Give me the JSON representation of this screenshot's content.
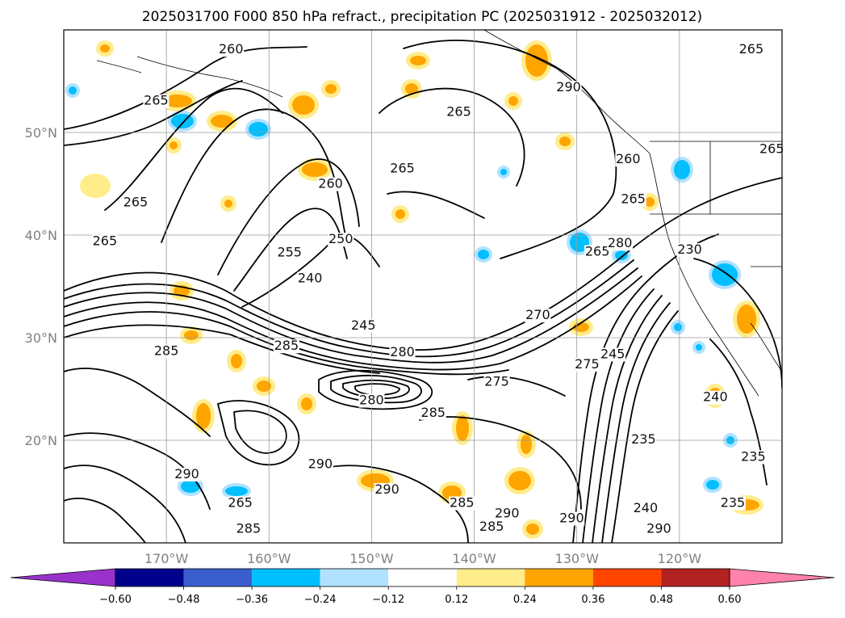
{
  "title": "2025031700 F000 850 hPa refract., precipitation PC (2025031912 - 2025032012)",
  "map": {
    "lat_labels": [
      "20°N",
      "30°N",
      "40°N",
      "50°N"
    ],
    "lon_labels": [
      "170°W",
      "160°W",
      "150°W",
      "140°W",
      "130°W",
      "120°W"
    ],
    "lat_values": [
      20,
      30,
      40,
      50
    ],
    "lon_values": [
      -170,
      -160,
      -150,
      -140,
      -130,
      -120
    ],
    "extent": {
      "lon_min": -180,
      "lon_max": -110,
      "lat_min": 10,
      "lat_max": 60
    }
  },
  "contours": {
    "color": "#000000",
    "labels": [
      {
        "text": "260",
        "lon": -163.7,
        "lat": 57.7
      },
      {
        "text": "265",
        "lon": -171.0,
        "lat": 52.7
      },
      {
        "text": "265",
        "lon": -173.0,
        "lat": 42.8
      },
      {
        "text": "265",
        "lon": -141.5,
        "lat": 51.6
      },
      {
        "text": "265",
        "lon": -147.0,
        "lat": 46.1
      },
      {
        "text": "265",
        "lon": -124.5,
        "lat": 43.1
      },
      {
        "text": "265",
        "lon": -128.0,
        "lat": 38.0
      },
      {
        "text": "265",
        "lon": -113.0,
        "lat": 57.7
      },
      {
        "text": "265",
        "lon": -111.0,
        "lat": 48.0
      },
      {
        "text": "265",
        "lon": -176.0,
        "lat": 39.0
      },
      {
        "text": "260",
        "lon": -154.0,
        "lat": 44.6
      },
      {
        "text": "250",
        "lon": -153.0,
        "lat": 39.2
      },
      {
        "text": "255",
        "lon": -158.0,
        "lat": 37.9
      },
      {
        "text": "240",
        "lon": -156.0,
        "lat": 35.4
      },
      {
        "text": "245",
        "lon": -150.8,
        "lat": 30.8
      },
      {
        "text": "280",
        "lon": -147.0,
        "lat": 28.2
      },
      {
        "text": "270",
        "lon": -133.8,
        "lat": 31.8
      },
      {
        "text": "275",
        "lon": -137.8,
        "lat": 25.3
      },
      {
        "text": "285",
        "lon": -144.0,
        "lat": 22.3
      },
      {
        "text": "285",
        "lon": -158.3,
        "lat": 28.8
      },
      {
        "text": "285",
        "lon": -170.0,
        "lat": 28.3
      },
      {
        "text": "280",
        "lon": -150.0,
        "lat": 23.5
      },
      {
        "text": "290",
        "lon": -168.0,
        "lat": 16.3
      },
      {
        "text": "290",
        "lon": -155.0,
        "lat": 17.3
      },
      {
        "text": "290",
        "lon": -148.5,
        "lat": 14.8
      },
      {
        "text": "290",
        "lon": -136.8,
        "lat": 12.5
      },
      {
        "text": "290",
        "lon": -130.5,
        "lat": 12.0
      },
      {
        "text": "290",
        "lon": -122.0,
        "lat": 11.0
      },
      {
        "text": "285",
        "lon": -141.2,
        "lat": 13.5
      },
      {
        "text": "285",
        "lon": -138.3,
        "lat": 11.2
      },
      {
        "text": "285",
        "lon": -162.0,
        "lat": 11.0
      },
      {
        "text": "265",
        "lon": -162.8,
        "lat": 13.5
      },
      {
        "text": "245",
        "lon": -126.5,
        "lat": 28.0
      },
      {
        "text": "275",
        "lon": -129.0,
        "lat": 27.0
      },
      {
        "text": "235",
        "lon": -123.5,
        "lat": 19.7
      },
      {
        "text": "235",
        "lon": -112.8,
        "lat": 18.0
      },
      {
        "text": "235",
        "lon": -114.8,
        "lat": 13.5
      },
      {
        "text": "240",
        "lon": -116.5,
        "lat": 23.8
      },
      {
        "text": "240",
        "lon": -123.3,
        "lat": 13.0
      },
      {
        "text": "230",
        "lon": -119.0,
        "lat": 38.2
      },
      {
        "text": "280",
        "lon": -125.8,
        "lat": 38.8
      },
      {
        "text": "260",
        "lon": -125.0,
        "lat": 47.0
      },
      {
        "text": "290",
        "lon": -130.8,
        "lat": 54.0
      }
    ]
  },
  "colorbar": {
    "tick_labels": [
      "−0.60",
      "−0.48",
      "−0.36",
      "−0.24",
      "−0.12",
      "0.12",
      "0.24",
      "0.36",
      "0.48",
      "0.60"
    ],
    "colors": [
      "#9932cc",
      "#00008b",
      "#3a5fcd",
      "#00bfff",
      "#b0e2ff",
      "#ffffff",
      "#ffec8b",
      "#ffa500",
      "#ff4500",
      "#b22222",
      "#ff82ab"
    ]
  },
  "precip_colors": {
    "light_yellow": "#ffec8b",
    "orange": "#ffa500",
    "light_blue": "#b0e2ff",
    "blue": "#00bfff"
  }
}
